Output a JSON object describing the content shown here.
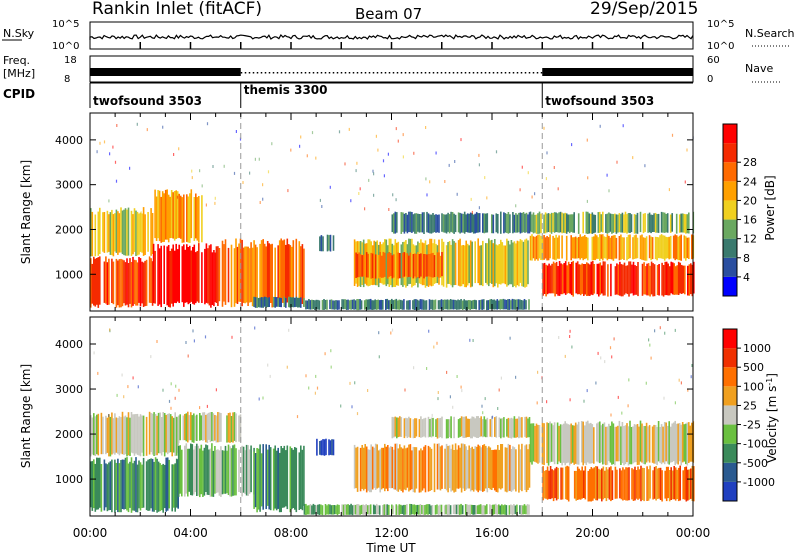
{
  "header": {
    "station": "Rankin Inlet (fitACF)",
    "beam": "Beam 07",
    "date": "29/Sep/2015"
  },
  "aux_panels": {
    "nsky_label": "N.Sky",
    "nsearch_label": "N.Search",
    "freq_label_1": "Freq.",
    "freq_label_2": "[MHz]",
    "nave_label": "Nave",
    "cpid_label": "CPID",
    "noise_ticks_left": [
      "10^5",
      "10^0"
    ],
    "noise_ticks_right": [
      "10^5",
      "10^0"
    ],
    "freq_ticks": [
      "18",
      "8"
    ],
    "nave_ticks": [
      "60",
      "0"
    ]
  },
  "cpid_segments": [
    {
      "name": "twofsound 3503",
      "start_hour": 0,
      "end_hour": 6
    },
    {
      "name": "themis 3300",
      "start_hour": 6,
      "end_hour": 18
    },
    {
      "name": "twofsound 3503",
      "start_hour": 18,
      "end_hour": 24
    }
  ],
  "chart_data": [
    {
      "type": "heatmap",
      "panel": "power",
      "ylabel": "Slant Range [km]",
      "xlabel": "Time UT",
      "x_ticks": [
        "00:00",
        "04:00",
        "08:00",
        "12:00",
        "16:00",
        "20:00",
        "00:00"
      ],
      "y_ticks": [
        "1000",
        "2000",
        "3000",
        "4000"
      ],
      "ylim": [
        180,
        4600
      ],
      "xlim_hours": [
        0,
        24
      ],
      "colorbar": {
        "label": "Power [dB]",
        "ticks": [
          "4",
          "8",
          "12",
          "16",
          "20",
          "24",
          "28"
        ],
        "colors": [
          "#0000ff",
          "#2a4ea0",
          "#3a7a6e",
          "#6aa860",
          "#f0d020",
          "#ffa000",
          "#ff6a00",
          "#f52a00",
          "#ff0000"
        ]
      },
      "regions": [
        {
          "t0": 0.0,
          "t1": 2.5,
          "r0": 250,
          "r1": 1400,
          "level": 7
        },
        {
          "t0": 0.0,
          "t1": 2.5,
          "r0": 1400,
          "r1": 2500,
          "level": 4
        },
        {
          "t0": 2.5,
          "t1": 5.0,
          "r0": 250,
          "r1": 1700,
          "level": 8
        },
        {
          "t0": 2.5,
          "t1": 4.5,
          "r0": 1700,
          "r1": 2900,
          "level": 5
        },
        {
          "t0": 5.0,
          "t1": 8.5,
          "r0": 250,
          "r1": 1800,
          "level": 6
        },
        {
          "t0": 6.5,
          "t1": 8.5,
          "r0": 250,
          "r1": 500,
          "level": 2
        },
        {
          "t0": 9.0,
          "t1": 9.7,
          "r0": 1500,
          "r1": 1900,
          "level": 2
        },
        {
          "t0": 10.5,
          "t1": 17.5,
          "r0": 700,
          "r1": 1800,
          "level": 4
        },
        {
          "t0": 10.5,
          "t1": 14.0,
          "r0": 900,
          "r1": 1500,
          "level": 6
        },
        {
          "t0": 12.0,
          "t1": 17.5,
          "r0": 1900,
          "r1": 2400,
          "level": 2
        },
        {
          "t0": 8.5,
          "t1": 17.5,
          "r0": 200,
          "r1": 450,
          "level": 2
        },
        {
          "t0": 17.5,
          "t1": 24.0,
          "r0": 1300,
          "r1": 1900,
          "level": 5
        },
        {
          "t0": 18.0,
          "t1": 24.0,
          "r0": 500,
          "r1": 1300,
          "level": 7
        },
        {
          "t0": 17.5,
          "t1": 24.0,
          "r0": 1900,
          "r1": 2400,
          "level": 3
        }
      ]
    },
    {
      "type": "heatmap",
      "panel": "velocity",
      "ylabel": "Slant Range [km]",
      "xlabel": "Time UT",
      "x_ticks": [
        "00:00",
        "04:00",
        "08:00",
        "12:00",
        "16:00",
        "20:00",
        "00:00"
      ],
      "y_ticks": [
        "1000",
        "2000",
        "3000",
        "4000"
      ],
      "ylim": [
        180,
        4600
      ],
      "xlim_hours": [
        0,
        24
      ],
      "colorbar": {
        "label": "Velocity [m s^-1]",
        "ticks": [
          "1000",
          "500",
          "100",
          "25",
          "-25",
          "-100",
          "-500",
          "-1000"
        ],
        "colors": [
          "#2040c0",
          "#2a5a90",
          "#3a8a5a",
          "#6ac040",
          "#c8c8c0",
          "#f0a020",
          "#ff7000",
          "#f03000",
          "#ff0000"
        ]
      },
      "regions": [
        {
          "t0": 0.0,
          "t1": 3.5,
          "r0": 250,
          "r1": 1500,
          "level": 2
        },
        {
          "t0": 0.0,
          "t1": 3.5,
          "r0": 1500,
          "r1": 2500,
          "level": 4
        },
        {
          "t0": 3.5,
          "t1": 6.5,
          "r0": 600,
          "r1": 1800,
          "level": 3
        },
        {
          "t0": 3.5,
          "t1": 6.0,
          "r0": 1800,
          "r1": 2500,
          "level": 4
        },
        {
          "t0": 6.5,
          "t1": 8.5,
          "r0": 250,
          "r1": 1800,
          "level": 2
        },
        {
          "t0": 9.0,
          "t1": 9.7,
          "r0": 1500,
          "r1": 1900,
          "level": 0
        },
        {
          "t0": 10.5,
          "t1": 17.5,
          "r0": 700,
          "r1": 1800,
          "level": 5
        },
        {
          "t0": 12.0,
          "t1": 17.5,
          "r0": 1900,
          "r1": 2400,
          "level": 4
        },
        {
          "t0": 8.5,
          "t1": 17.5,
          "r0": 200,
          "r1": 450,
          "level": 3
        },
        {
          "t0": 17.5,
          "t1": 24.0,
          "r0": 1300,
          "r1": 2300,
          "level": 4
        },
        {
          "t0": 18.0,
          "t1": 24.0,
          "r0": 500,
          "r1": 1300,
          "level": 6
        }
      ]
    }
  ]
}
